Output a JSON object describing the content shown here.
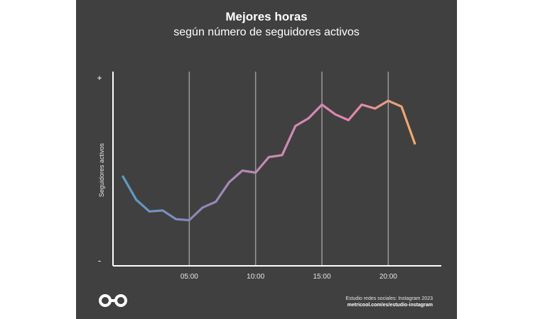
{
  "chart_data": {
    "type": "line",
    "title": "Mejores horas",
    "subtitle": "según número de seguidores activos",
    "ylabel": "Seguidores activos",
    "xlabel": "",
    "y_tick_labels": {
      "top": "+",
      "bottom": "-"
    },
    "x_ticks": [
      {
        "value": 5,
        "label": "05:00"
      },
      {
        "value": 10,
        "label": "10:00"
      },
      {
        "value": 15,
        "label": "15:00"
      },
      {
        "value": 20,
        "label": "20:00"
      }
    ],
    "xlim": [
      -0.75,
      24
    ],
    "ylim": [
      0,
      100
    ],
    "grid": "vertical",
    "gradient_colors": [
      "#5b9cc4",
      "#8e86b8",
      "#c98bb6",
      "#e384b0",
      "#f2b35a"
    ],
    "series": [
      {
        "x": [
          0,
          1,
          2,
          3,
          4,
          5,
          6,
          7,
          8,
          9,
          10,
          11,
          12,
          13,
          14,
          15,
          16,
          17,
          18,
          19,
          20,
          21,
          22
        ],
        "values": [
          46,
          34,
          28,
          28.5,
          24,
          23.5,
          30,
          33,
          43,
          49,
          48,
          56,
          57,
          72,
          76,
          83,
          78,
          75,
          83,
          81,
          85,
          82,
          63
        ]
      }
    ]
  },
  "footer": {
    "line1": "Estudio redes sociales: Instagram 2023",
    "line2": "metricool.com/es/estudio-instagram"
  },
  "logo": {
    "icon": "infinity-logo-icon"
  }
}
